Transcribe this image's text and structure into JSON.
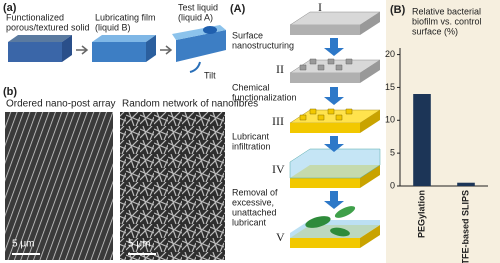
{
  "panel_a": {
    "label": "(a)",
    "solid": [
      "Functionalized",
      "porous/textured solid"
    ],
    "film": [
      "Lubricating film",
      "(liquid B)"
    ],
    "test": [
      "Test liquid",
      "(liquid A)"
    ],
    "tilt": "Tilt"
  },
  "panel_b": {
    "label": "(b)",
    "left_title": "Ordered nano-post array",
    "right_title": "Random network of nanofibres",
    "scale_left": "5 μm",
    "scale_right": "5 μm"
  },
  "panel_A": {
    "label": "(A)",
    "steps": [
      "I",
      "II",
      "III",
      "IV",
      "V"
    ],
    "labels": [
      [
        "Surface",
        "nanostructuring"
      ],
      [
        "Chemical",
        "functionalization"
      ],
      [
        "Lubricant",
        "infiltration"
      ],
      [
        "Removal of",
        "excessive,",
        "unattached",
        "lubricant"
      ]
    ]
  },
  "chart_data": {
    "type": "bar",
    "panel_label": "(B)",
    "title": [
      "Relative bacterial",
      "biofilm vs. control",
      "surface (%)"
    ],
    "categories": [
      "PEGylation",
      "PTFE-based SLIPS"
    ],
    "values": [
      14,
      0.5
    ],
    "color": "#1c3557",
    "ylim": [
      0,
      21
    ],
    "yticks": [
      0,
      5,
      10,
      15,
      20
    ]
  }
}
